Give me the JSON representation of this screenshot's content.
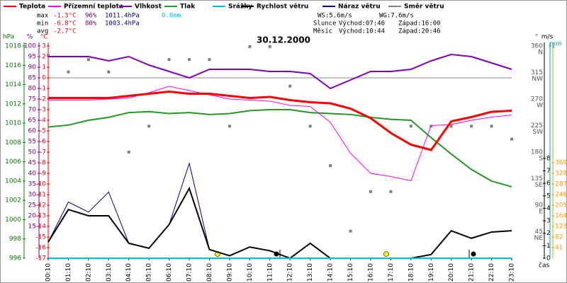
{
  "chart_data": {
    "type": "line",
    "title": "30.12.2000",
    "x_label": "čas",
    "categories": [
      "00:10",
      "01:10",
      "02:10",
      "03:10",
      "04:10",
      "05:10",
      "06:10",
      "07:10",
      "08:10",
      "09:10",
      "10:10",
      "11:10",
      "12:10",
      "13:10",
      "14:10",
      "15:10",
      "16:10",
      "17:10",
      "18:10",
      "19:10",
      "20:10",
      "21:10",
      "22:10",
      "23:10"
    ],
    "axes": {
      "pressure": {
        "label": "hPa",
        "color": "#008000",
        "lim": [
          996,
          1018
        ],
        "ticks": [
          1018,
          1016,
          1014,
          1012,
          1010,
          1008,
          1006,
          1004,
          1002,
          1000,
          998,
          996
        ]
      },
      "humidity": {
        "label": "%",
        "color": "#800080",
        "lim": [
          0,
          100
        ],
        "ticks": [
          100,
          95,
          90,
          85,
          80,
          75,
          70,
          65,
          60,
          55,
          50,
          45,
          40,
          35,
          30,
          25,
          20,
          15
        ]
      },
      "temp": {
        "label": "°C",
        "color": "#ff0000",
        "lim": [
          -17,
          3
        ],
        "ticks": [
          3,
          2,
          1,
          0,
          -1,
          -2,
          -3,
          -4,
          -5,
          -6,
          -7,
          -8,
          -9,
          -10,
          -11,
          -12,
          -13,
          -14,
          -15,
          -16,
          -17
        ]
      },
      "direction": {
        "label": "°",
        "color": "#555555",
        "lim": [
          0,
          360
        ],
        "ticks": [
          360,
          315,
          270,
          225,
          180,
          135,
          90,
          45
        ],
        "compass": [
          {
            "value": 360,
            "label": "N"
          },
          {
            "value": 315,
            "label": "NW"
          },
          {
            "value": 270,
            "label": "W"
          },
          {
            "value": 225,
            "label": "SW"
          },
          {
            "value": 180,
            "label": "S"
          },
          {
            "value": 135,
            "label": "SE"
          },
          {
            "value": 90,
            "label": "E"
          },
          {
            "value": 45,
            "label": "NE"
          }
        ]
      },
      "wind": {
        "label": "m/s",
        "color": "#000000",
        "lim": [
          0,
          17
        ],
        "ticks": [
          8,
          7,
          6,
          5,
          4,
          3,
          2,
          1,
          0
        ]
      },
      "rain": {
        "label": "mm",
        "color": "#00aacc",
        "lim": [
          0,
          1
        ],
        "ticks": [
          1
        ]
      },
      "other": {
        "color": "#ff9900",
        "lim": [
          0,
          820
        ],
        "ticks": [
          369,
          328,
          287,
          246,
          205,
          164,
          123,
          82,
          41
        ]
      }
    },
    "series": [
      {
        "name": "Teplota",
        "color": "#ff0000",
        "axis": "temp",
        "width": 3,
        "values": [
          -1.9,
          -1.9,
          -1.9,
          -1.9,
          -1.7,
          -1.5,
          -1.3,
          -1.5,
          -1.5,
          -1.7,
          -1.9,
          -1.8,
          -2.1,
          -2.3,
          -2.4,
          -2.9,
          -3.8,
          -5.2,
          -6.3,
          -6.8,
          -4.1,
          -3.7,
          -3.2,
          -3.1
        ]
      },
      {
        "name": "Přízemní teplota",
        "color": "#ff00ff",
        "axis": "temp",
        "width": 1,
        "values": [
          -2.1,
          -2.1,
          -2.1,
          -2.0,
          -1.9,
          -1.4,
          -0.8,
          -1.2,
          -1.6,
          -2.0,
          -2.1,
          -2.2,
          -2.6,
          -2.7,
          -4.2,
          -7.1,
          -9.0,
          -9.3,
          -9.7,
          -4.5,
          -4.4,
          -4.0,
          -3.7,
          -3.5
        ]
      },
      {
        "name": "Vlhkost",
        "color": "#8000c0",
        "axis": "humidity",
        "width": 2,
        "values": [
          95,
          95,
          95,
          93,
          95,
          91,
          88,
          85,
          89,
          89,
          89,
          88,
          88,
          87,
          80,
          84,
          88,
          88,
          89,
          93,
          96,
          95,
          92,
          89
        ]
      },
      {
        "name": "Tlak",
        "color": "#229922",
        "axis": "pressure",
        "width": 2,
        "values": [
          1009.6,
          1009.8,
          1010.3,
          1010.6,
          1011.1,
          1011.2,
          1011.0,
          1011.1,
          1010.9,
          1011.0,
          1011.3,
          1011.4,
          1011.4,
          1011.1,
          1011.0,
          1010.9,
          1010.6,
          1010.4,
          1010.3,
          1008.5,
          1006.8,
          1005.2,
          1004.0,
          1003.4
        ]
      },
      {
        "name": "Srážky",
        "color": "#00bbdd",
        "axis": "rain",
        "width": 2,
        "values": [
          0,
          0,
          0,
          0,
          0,
          0,
          0,
          0,
          0,
          0,
          0,
          0,
          0,
          0,
          0,
          0,
          0,
          0,
          0,
          0,
          0,
          0,
          0,
          0
        ]
      },
      {
        "name": "Rychlost větru",
        "color": "#000000",
        "axis": "wind",
        "width": 2,
        "values": [
          1.3,
          3.9,
          3.4,
          3.4,
          1.2,
          0.8,
          2.7,
          5.6,
          0.7,
          0.2,
          0.9,
          0.6,
          0,
          1.2,
          0,
          0,
          0,
          0,
          0,
          0.3,
          2.2,
          1.6,
          2.1,
          2.2
        ]
      },
      {
        "name": "Náraz větru",
        "color": "#000080",
        "axis": "wind",
        "width": 1,
        "values": [
          1.3,
          4.5,
          3.7,
          5.3,
          1.2,
          0.8,
          2.7,
          7.6,
          0.7,
          0.2,
          0.9,
          0.6,
          0,
          1.2,
          0,
          0,
          0,
          0,
          0,
          0.3,
          2.2,
          1.6,
          2.1,
          2.2
        ]
      },
      {
        "name": "Směr větru",
        "color": "#808080",
        "axis": "direction",
        "type": "scatter",
        "values": [
          344,
          316,
          337,
          316,
          180,
          224,
          337,
          337,
          337,
          224,
          359,
          359,
          292,
          224,
          157,
          46,
          113,
          113,
          224,
          224,
          224,
          224,
          224,
          202
        ]
      }
    ],
    "stats": [
      {
        "label": "max",
        "temp": "-1.3°C",
        "humidity": "96%",
        "pressure": "1011.4hPa",
        "rain": "0.0mm"
      },
      {
        "label": "min",
        "temp": "-6.8°C",
        "humidity": "80%",
        "pressure": "1003.4hPa"
      },
      {
        "label": "avg",
        "temp": "-2.7°C"
      }
    ],
    "info": {
      "ws": "WS:5.6m/s",
      "wg": "WG:7.6m/s",
      "sun": {
        "label": "Slunce",
        "rise": "Východ:07:46",
        "set": "Západ:16:00"
      },
      "moon": {
        "label": "Měsíc",
        "rise": "Východ:10:44",
        "set": "Západ:20:46"
      }
    }
  }
}
